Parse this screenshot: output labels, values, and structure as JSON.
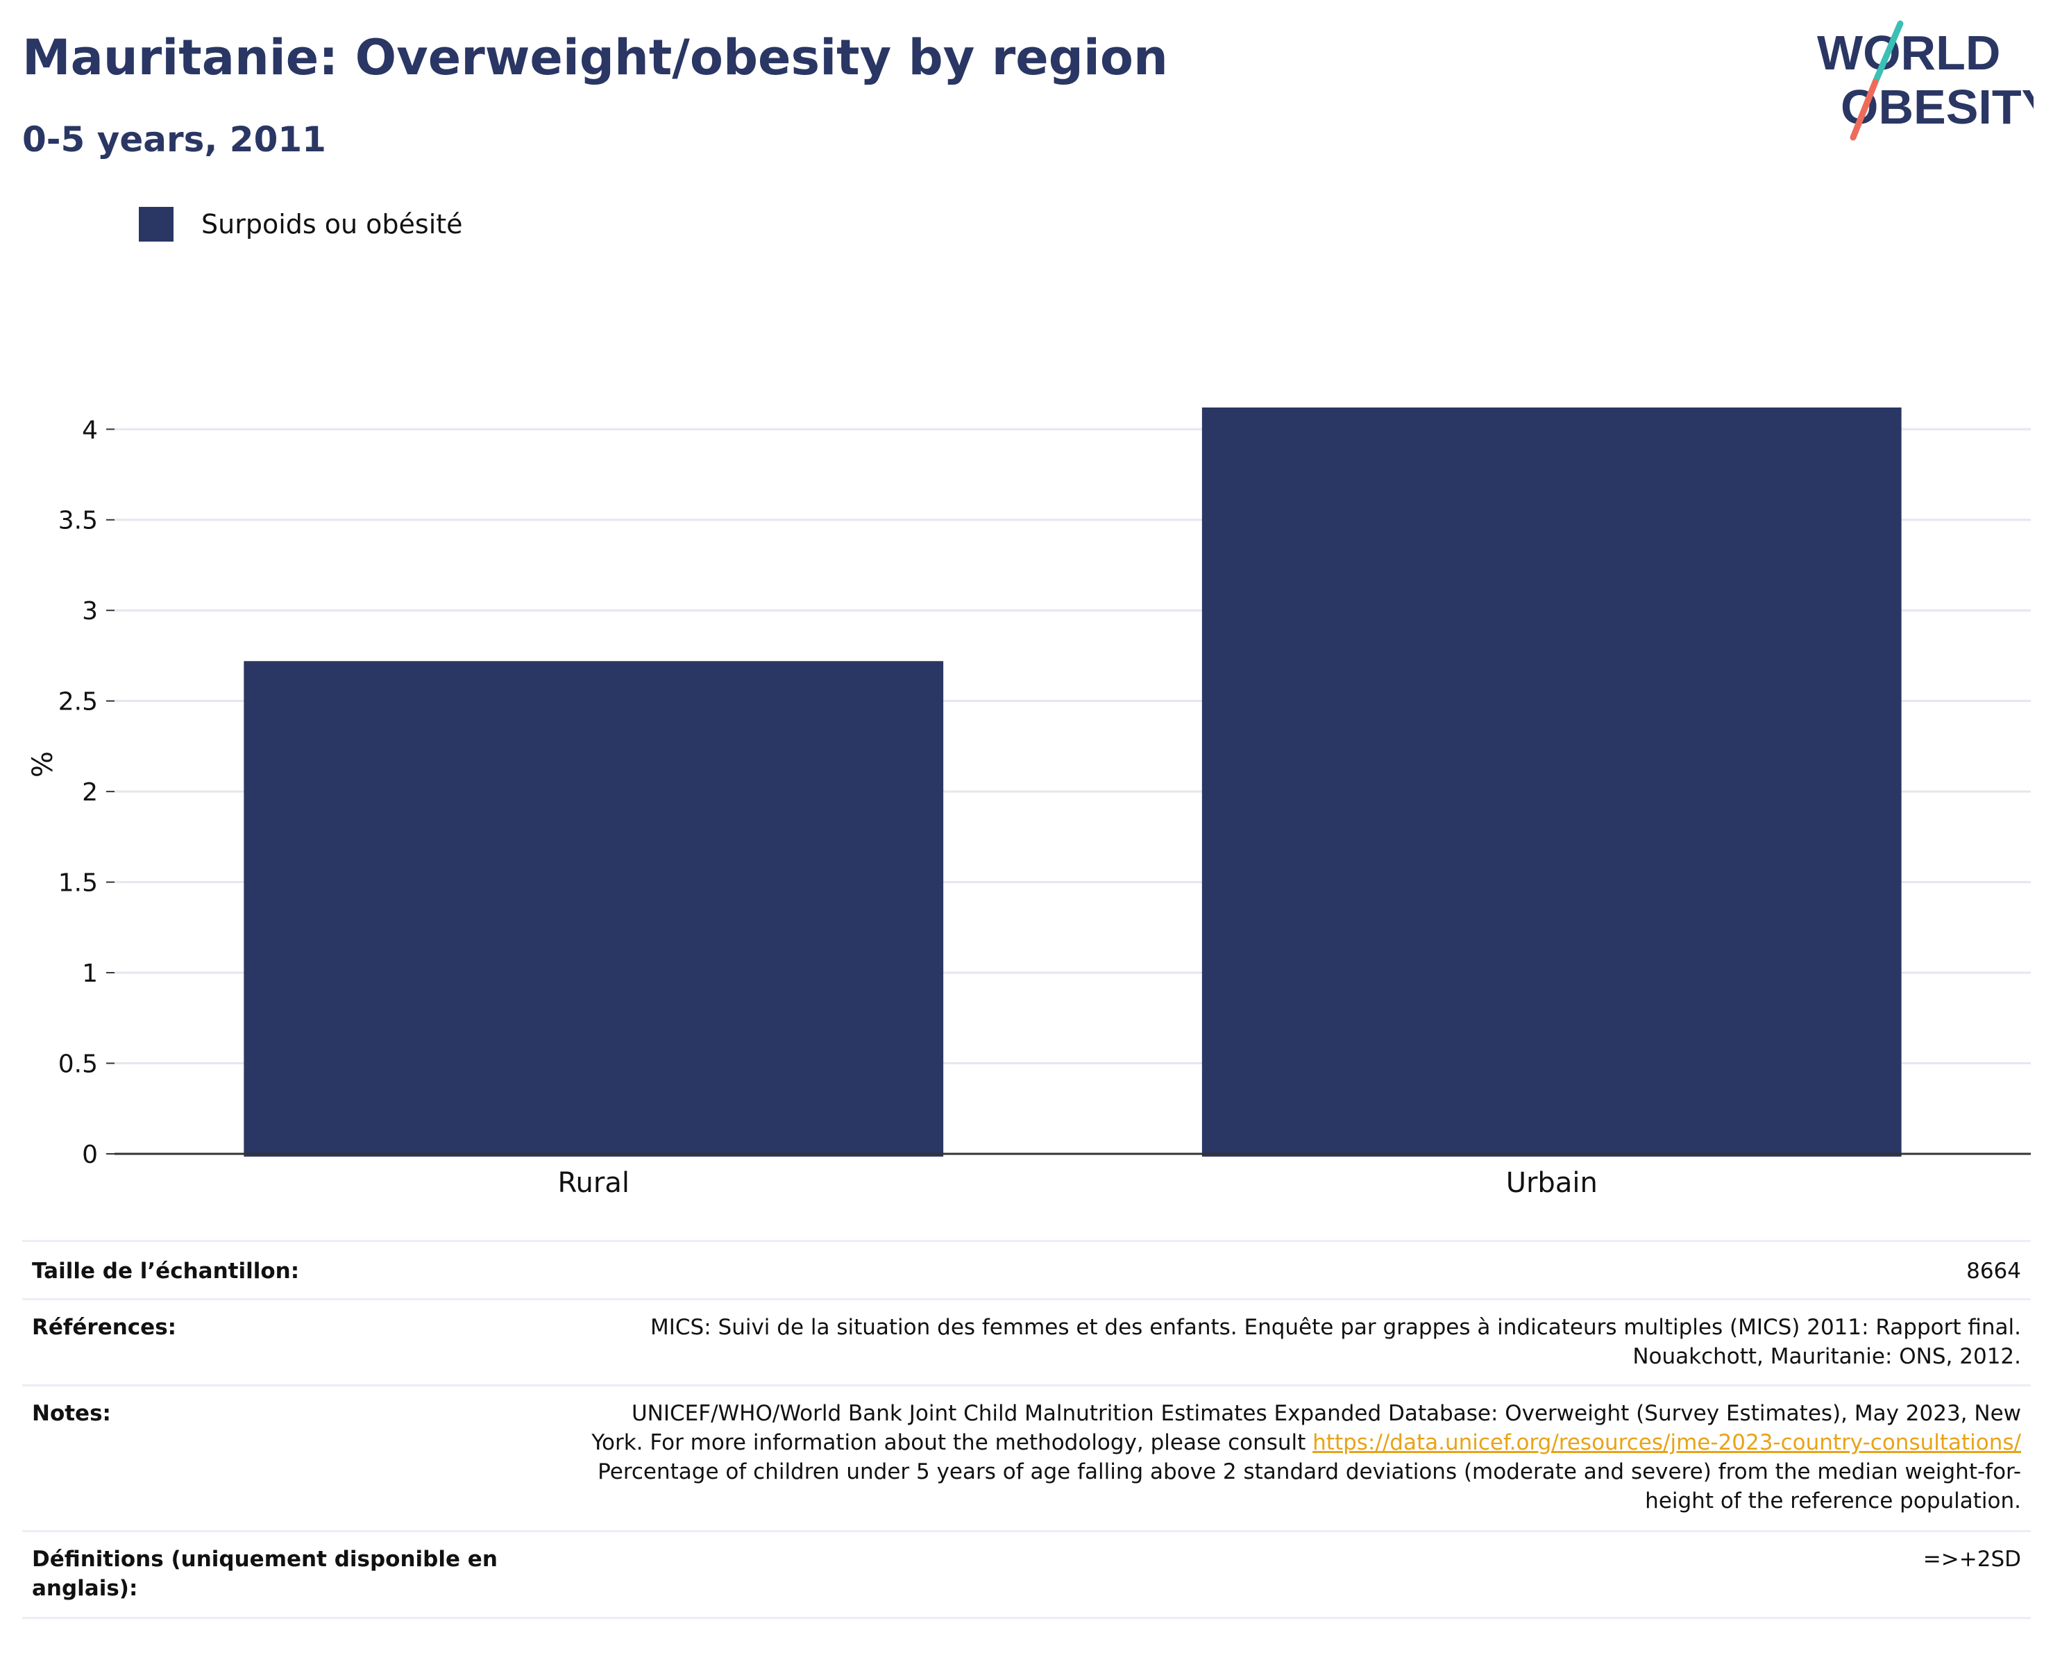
{
  "header": {
    "title": "Mauritanie: Overweight/obesity by region",
    "subtitle": "0-5 years, 2011"
  },
  "logo": {
    "line1": "WORLD",
    "line2": "OBESITY",
    "colors": {
      "text": "#2a3663",
      "slash_top": "#3cbfb4",
      "slash_bottom": "#ee6b5c"
    }
  },
  "colors": {
    "bar": "#2a3663",
    "grid": "#e6e6ee",
    "axis": "#333333",
    "link": "#e8a316"
  },
  "chart_data": {
    "type": "bar",
    "categories": [
      "Rural",
      "Urbain"
    ],
    "series": [
      {
        "name": "Surpoids ou obésité",
        "values": [
          2.72,
          4.12
        ]
      }
    ],
    "ylabel": "%",
    "xlabel": "",
    "ylim": [
      0,
      4.3
    ],
    "yticks": [
      0,
      0.5,
      1,
      1.5,
      2,
      2.5,
      3,
      3.5,
      4
    ],
    "ytick_labels": [
      "0",
      "0.5",
      "1",
      "1.5",
      "2",
      "2.5",
      "3",
      "3.5",
      "4"
    ],
    "grid": true,
    "legend_position": "top-left"
  },
  "meta": {
    "sample_size": {
      "label": "Taille de l’échantillon:",
      "value": "8664"
    },
    "references": {
      "label": "Références:",
      "line1": "MICS: Suivi de la situation des femmes et des enfants. Enquête par grappes à indicateurs multiples (MICS) 2011: Rapport final.",
      "line2": "Nouakchott, Mauritanie: ONS, 2012."
    },
    "notes": {
      "label": "Notes:",
      "line1": "UNICEF/WHO/World Bank Joint Child Malnutrition Estimates Expanded Database: Overweight (Survey Estimates), May 2023, New",
      "line2_prefix": "York. For more information about the methodology, please consult ",
      "link": "https://data.unicef.org/resources/jme-2023-country-consultations/",
      "line3": "Percentage of children under 5 years of age falling above 2 standard deviations (moderate and severe) from the median weight-for-",
      "line4": "height of the reference population."
    },
    "definitions": {
      "label_line1": "Définitions (uniquement disponible en",
      "label_line2": "anglais):",
      "value": "=>+2SD"
    }
  }
}
